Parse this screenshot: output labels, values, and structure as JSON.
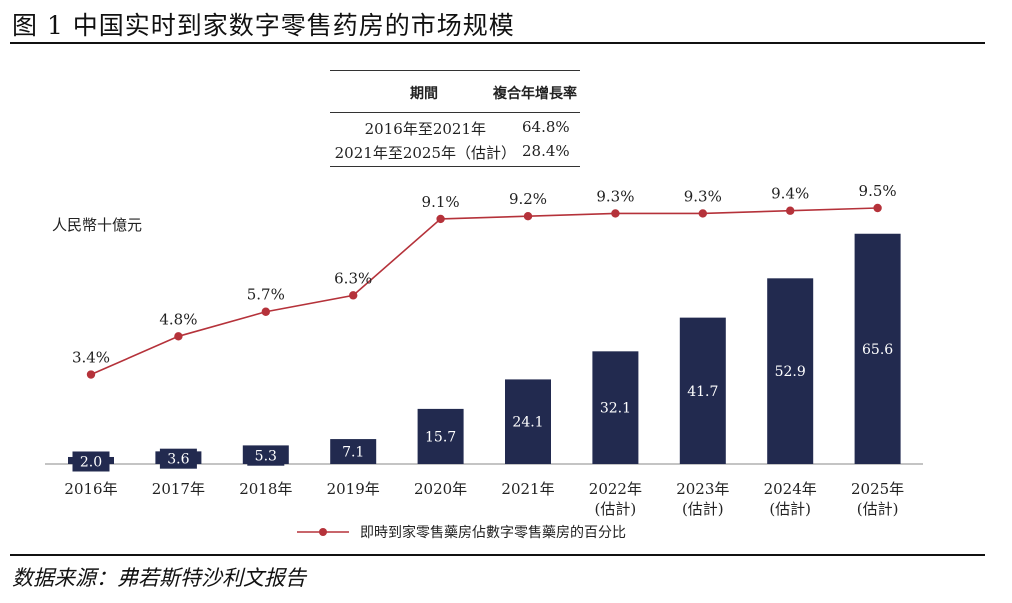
{
  "figure_title": "图 1 中国实时到家数字零售药房的市场规模",
  "unit_label": "人民幣十億元",
  "cagr_table": {
    "headers": [
      "期間",
      "複合年增長率"
    ],
    "rows": [
      {
        "period": "2016年至2021年",
        "rate": "64.8%"
      },
      {
        "period": "2021年至2025年（估計）",
        "rate": "28.4%"
      }
    ]
  },
  "chart_data": {
    "type": "bar",
    "categories": [
      "2016年",
      "2017年",
      "2018年",
      "2019年",
      "2020年",
      "2021年",
      "2022年",
      "2023年",
      "2024年",
      "2025年"
    ],
    "category_notes": [
      "",
      "",
      "",
      "",
      "",
      "",
      "(估計)",
      "(估計)",
      "(估計)",
      "(估計)"
    ],
    "series": [
      {
        "type": "bar",
        "values": [
          2.0,
          3.6,
          5.3,
          7.1,
          15.7,
          24.1,
          32.1,
          41.7,
          52.9,
          65.6
        ],
        "labels": [
          "2.0",
          "3.6",
          "5.3",
          "7.1",
          "15.7",
          "24.1",
          "32.1",
          "41.7",
          "52.9",
          "65.6"
        ]
      },
      {
        "type": "line",
        "name": "即時到家零售藥房佔數字零售藥房的百分比",
        "values": [
          3.4,
          4.8,
          5.7,
          6.3,
          9.1,
          9.2,
          9.3,
          9.3,
          9.4,
          9.5
        ],
        "labels": [
          "3.4%",
          "4.8%",
          "5.7%",
          "6.3%",
          "9.1%",
          "9.2%",
          "9.3%",
          "9.3%",
          "9.4%",
          "9.5%"
        ]
      }
    ],
    "legend_position": "bottom",
    "colors": {
      "bar": "#222a4f",
      "line": "#b5323a"
    }
  },
  "source_note": "数据来源：弗若斯特沙利文报告"
}
